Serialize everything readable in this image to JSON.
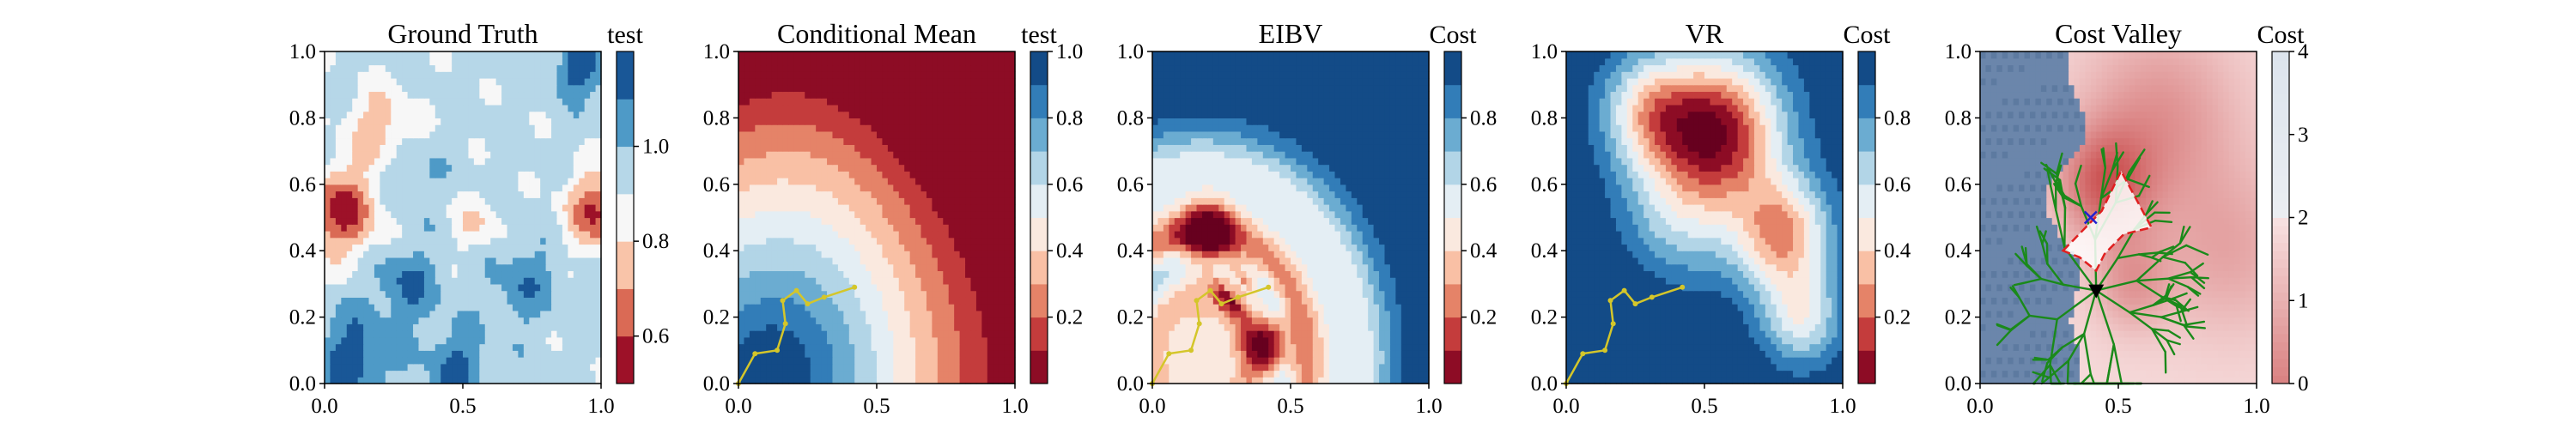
{
  "figure": {
    "background": "#ffffff"
  },
  "chart_data": [
    {
      "type": "heatmap",
      "title": "Ground Truth",
      "field": "ground_truth",
      "colormap": "RdBu",
      "xlim": [
        0,
        1
      ],
      "ylim": [
        0,
        1
      ],
      "x_ticks": [
        "0.0",
        "0.5",
        "1.0"
      ],
      "y_ticks": [
        "0.0",
        "0.2",
        "0.4",
        "0.6",
        "0.8",
        "1.0"
      ],
      "colorbar": {
        "title": "test",
        "range": [
          0.5,
          1.2
        ],
        "levels": 7,
        "ticks": [
          {
            "value": 0.6,
            "label": "0.6"
          },
          {
            "value": 0.8,
            "label": "0.8"
          },
          {
            "value": 1.0,
            "label": "1.0"
          }
        ]
      }
    },
    {
      "type": "heatmap",
      "title": "Conditional Mean",
      "field": "conditional_mean",
      "colormap": "RdBu",
      "xlim": [
        0,
        1
      ],
      "ylim": [
        0,
        1
      ],
      "x_ticks": [
        "0.0",
        "0.5",
        "1.0"
      ],
      "y_ticks": [
        "0.0",
        "0.2",
        "0.4",
        "0.6",
        "0.8",
        "1.0"
      ],
      "colorbar": {
        "title": "test",
        "range": [
          0,
          1
        ],
        "levels": 10,
        "ticks": [
          {
            "value": 0.2,
            "label": "0.2"
          },
          {
            "value": 0.4,
            "label": "0.4"
          },
          {
            "value": 0.6,
            "label": "0.6"
          },
          {
            "value": 0.8,
            "label": "0.8"
          },
          {
            "value": 1.0,
            "label": "1.0"
          }
        ]
      },
      "path": {
        "color": "#d4c62a",
        "x": [
          0.0,
          0.06,
          0.14,
          0.17,
          0.16,
          0.21,
          0.25,
          0.31,
          0.42
        ],
        "y": [
          0.0,
          0.09,
          0.1,
          0.18,
          0.25,
          0.28,
          0.24,
          0.26,
          0.29
        ]
      }
    },
    {
      "type": "heatmap",
      "title": "EIBV",
      "field": "eibv",
      "colormap": "RdBu",
      "xlim": [
        0,
        1
      ],
      "ylim": [
        0,
        1
      ],
      "x_ticks": [
        "0.0",
        "0.5",
        "1.0"
      ],
      "y_ticks": [
        "0.0",
        "0.2",
        "0.4",
        "0.6",
        "0.8",
        "1.0"
      ],
      "colorbar": {
        "title": "Cost",
        "range": [
          0,
          1
        ],
        "levels": 10,
        "ticks": [
          {
            "value": 0.2,
            "label": "0.2"
          },
          {
            "value": 0.4,
            "label": "0.4"
          },
          {
            "value": 0.6,
            "label": "0.6"
          },
          {
            "value": 0.8,
            "label": "0.8"
          }
        ]
      },
      "path": {
        "color": "#d4c62a",
        "x": [
          0.0,
          0.06,
          0.14,
          0.17,
          0.16,
          0.21,
          0.25,
          0.31,
          0.42
        ],
        "y": [
          0.0,
          0.09,
          0.1,
          0.18,
          0.25,
          0.28,
          0.24,
          0.26,
          0.29
        ]
      }
    },
    {
      "type": "heatmap",
      "title": "VR",
      "field": "vr",
      "colormap": "RdBu",
      "xlim": [
        0,
        1
      ],
      "ylim": [
        0,
        1
      ],
      "x_ticks": [
        "0.0",
        "0.5",
        "1.0"
      ],
      "y_ticks": [
        "0.0",
        "0.2",
        "0.4",
        "0.6",
        "0.8",
        "1.0"
      ],
      "colorbar": {
        "title": "Cost",
        "range": [
          0,
          1
        ],
        "levels": 10,
        "ticks": [
          {
            "value": 0.2,
            "label": "0.2"
          },
          {
            "value": 0.4,
            "label": "0.4"
          },
          {
            "value": 0.6,
            "label": "0.6"
          },
          {
            "value": 0.8,
            "label": "0.8"
          }
        ]
      },
      "path": {
        "color": "#d4c62a",
        "x": [
          0.0,
          0.06,
          0.14,
          0.17,
          0.16,
          0.21,
          0.25,
          0.31,
          0.42
        ],
        "y": [
          0.0,
          0.09,
          0.1,
          0.18,
          0.25,
          0.28,
          0.24,
          0.26,
          0.29
        ]
      }
    },
    {
      "type": "heatmap",
      "title": "Cost Valley",
      "field": "cost_valley",
      "colormap": "Reds_r",
      "xlim": [
        0,
        1
      ],
      "ylim": [
        0,
        1
      ],
      "x_ticks": [
        "0.0",
        "0.5",
        "1.0"
      ],
      "y_ticks": [
        "0.0",
        "0.2",
        "0.4",
        "0.6",
        "0.8",
        "1.0"
      ],
      "colorbar": {
        "title": "Cost",
        "range": [
          0,
          4
        ],
        "levels": 0,
        "ticks": [
          {
            "value": 0,
            "label": "0"
          },
          {
            "value": 1,
            "label": "1"
          },
          {
            "value": 2,
            "label": "2"
          },
          {
            "value": 3,
            "label": "3"
          },
          {
            "value": 4,
            "label": "4"
          }
        ]
      },
      "overlay": {
        "tree_color": "#1a8a1a",
        "boundary_color": "#e02020",
        "boundary": [
          [
            0.3,
            0.4
          ],
          [
            0.44,
            0.52
          ],
          [
            0.51,
            0.64
          ],
          [
            0.62,
            0.47
          ],
          [
            0.52,
            0.45
          ],
          [
            0.45,
            0.39
          ],
          [
            0.42,
            0.34
          ],
          [
            0.36,
            0.38
          ],
          [
            0.3,
            0.4
          ]
        ],
        "current_location": {
          "x": 0.42,
          "y": 0.28,
          "color": "#000000"
        },
        "next_location": {
          "x": 0.4,
          "y": 0.5,
          "color": "#2020d0"
        }
      }
    }
  ]
}
